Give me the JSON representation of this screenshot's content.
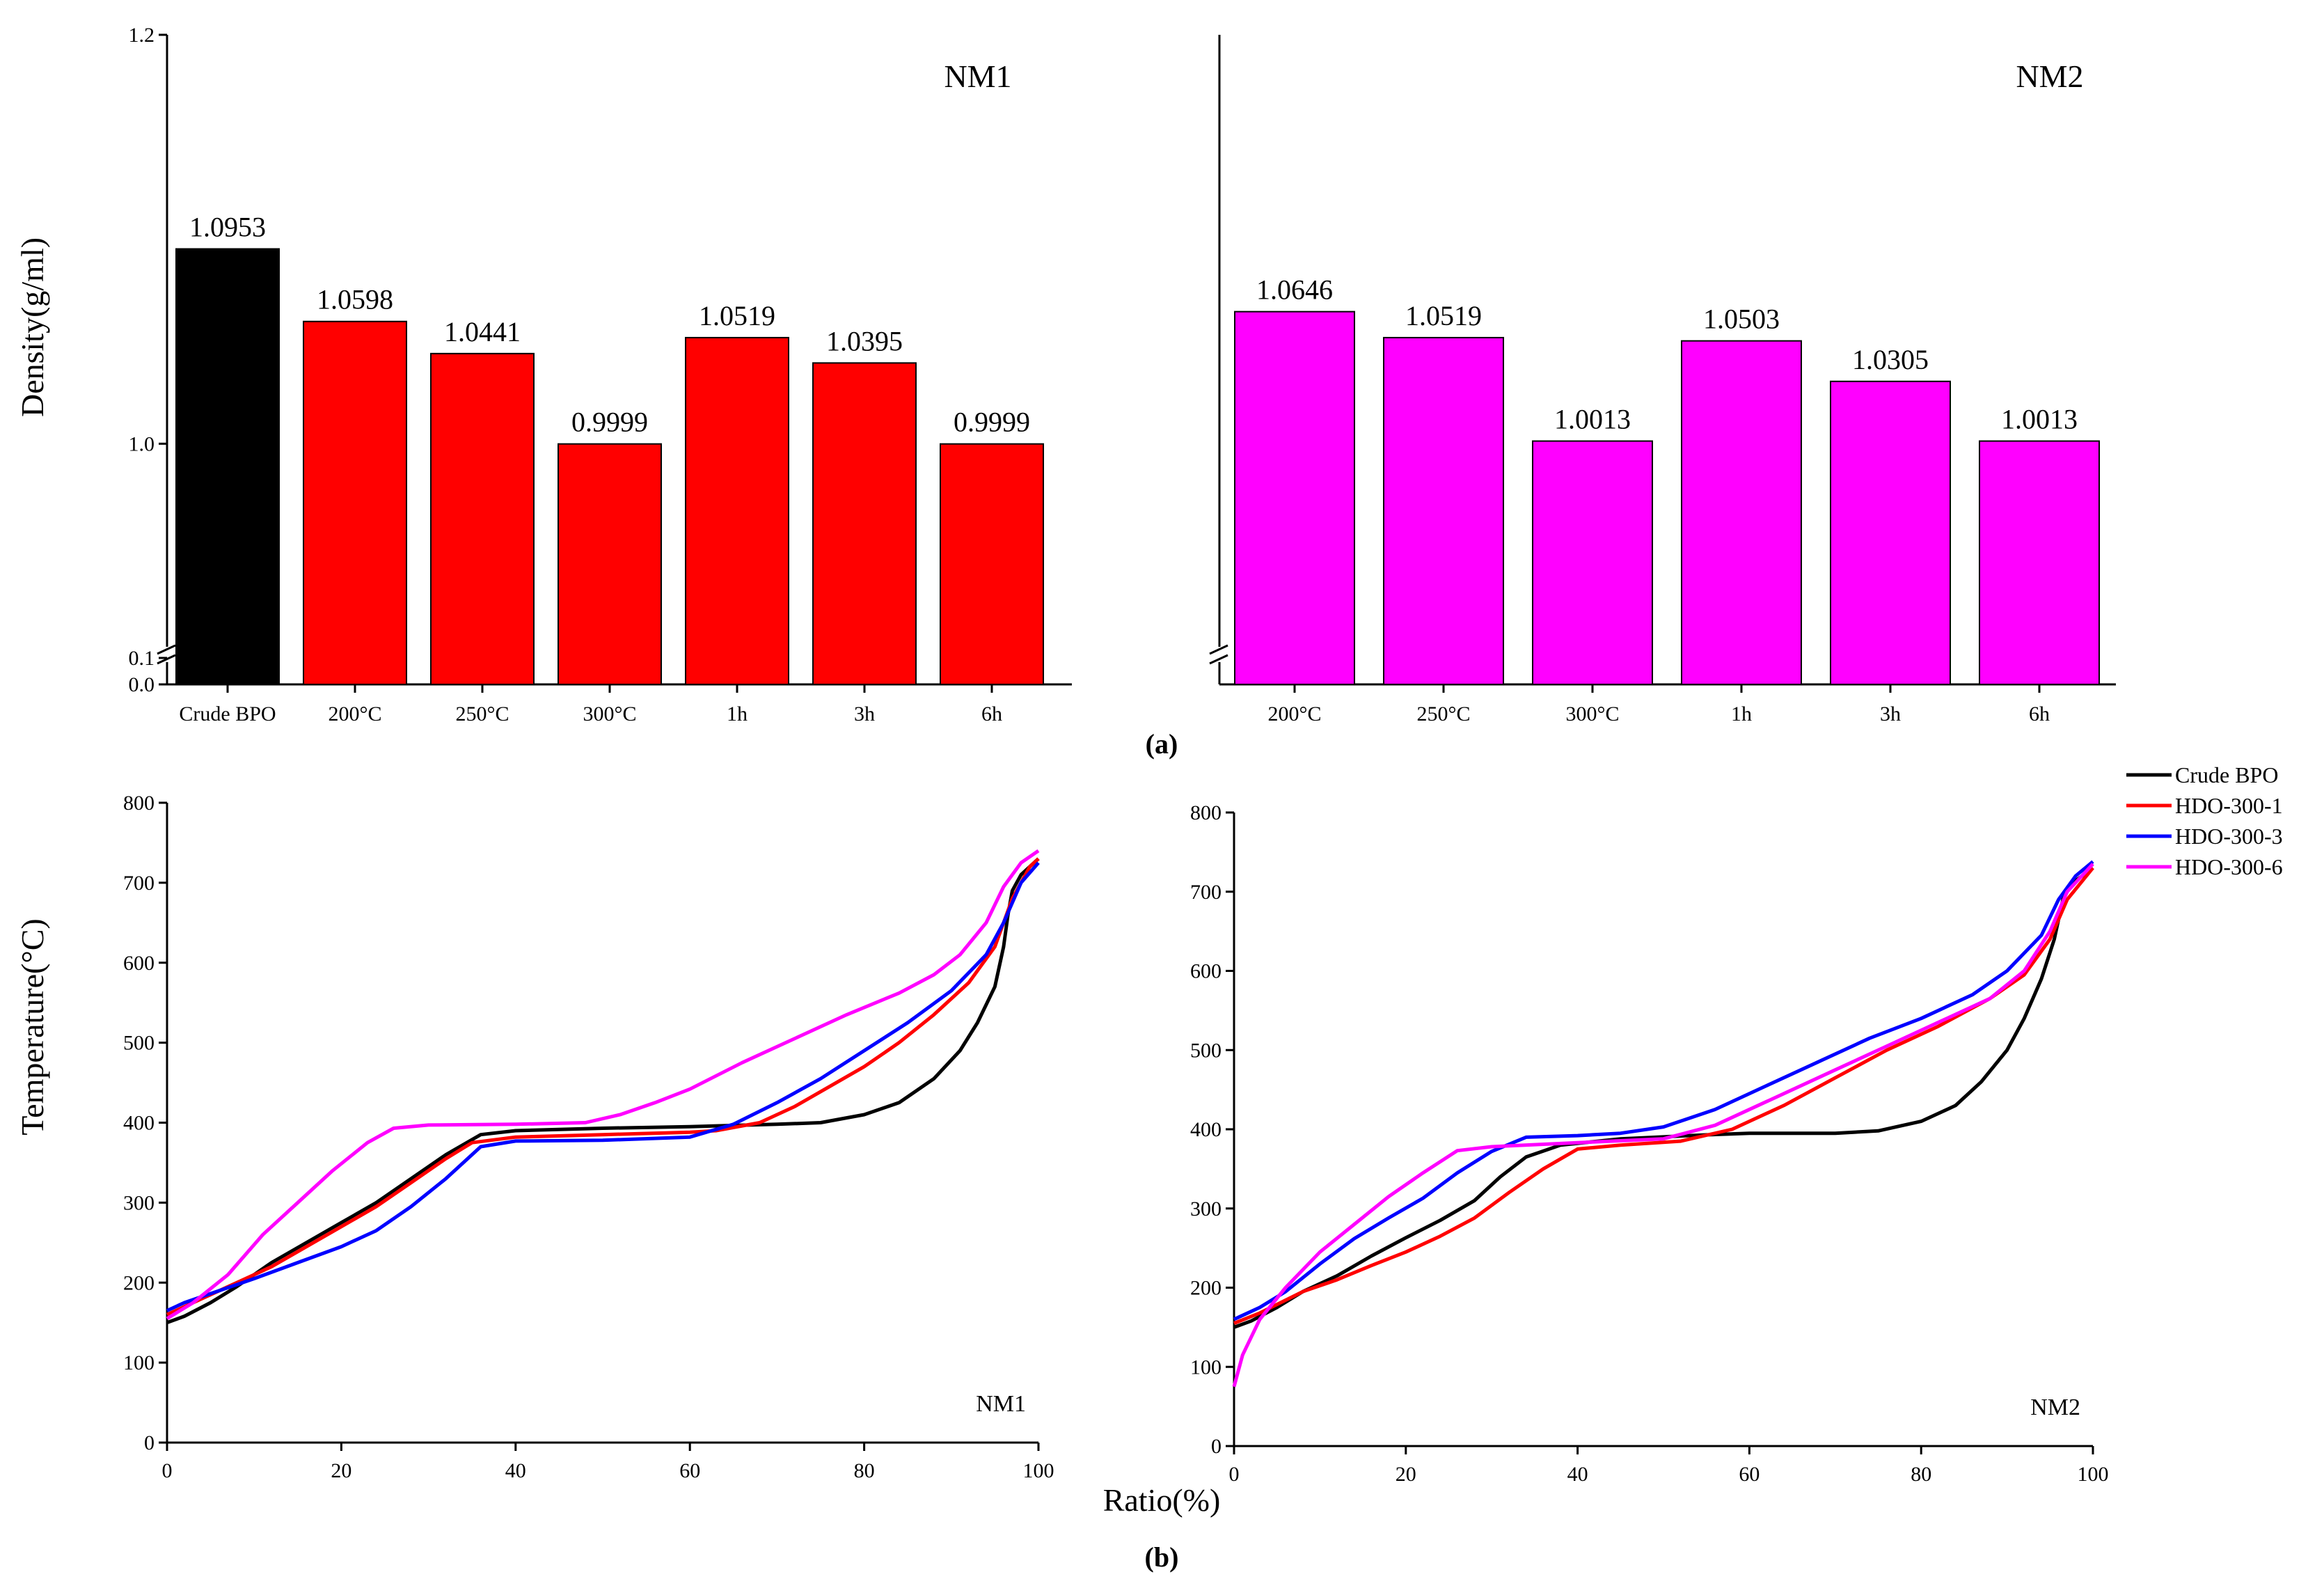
{
  "panels": {
    "a": "(a)",
    "b": "(b)"
  },
  "chart_data": [
    {
      "type": "bar",
      "title": "NM1",
      "ylabel": "Density(g/ml)",
      "ylim": [
        0.0,
        1.2
      ],
      "axis_break": [
        0.1,
        0.9
      ],
      "y_ticks": [
        "0.0",
        "0.1",
        "1.0",
        "1.2"
      ],
      "categories": [
        "Crude BPO",
        "200°C",
        "250°C",
        "300°C",
        "1h",
        "3h",
        "6h"
      ],
      "values": [
        1.0953,
        1.0598,
        1.0441,
        0.9999,
        1.0519,
        1.0395,
        0.9999
      ],
      "value_labels": [
        "1.0953",
        "1.0598",
        "1.0441",
        "0.9999",
        "1.0519",
        "1.0395",
        "0.9999"
      ],
      "colors": [
        "#000000",
        "#ff0000",
        "#ff0000",
        "#ff0000",
        "#ff0000",
        "#ff0000",
        "#ff0000"
      ]
    },
    {
      "type": "bar",
      "title": "NM2",
      "ylim": [
        0.0,
        1.2
      ],
      "axis_break": [
        0.1,
        0.9
      ],
      "categories": [
        "200°C",
        "250°C",
        "300°C",
        "1h",
        "3h",
        "6h"
      ],
      "values": [
        1.0646,
        1.0519,
        1.0013,
        1.0503,
        1.0305,
        1.0013
      ],
      "value_labels": [
        "1.0646",
        "1.0519",
        "1.0013",
        "1.0503",
        "1.0305",
        "1.0013"
      ],
      "colors": [
        "#ff00ff",
        "#ff00ff",
        "#ff00ff",
        "#ff00ff",
        "#ff00ff",
        "#ff00ff"
      ]
    },
    {
      "type": "line",
      "title": "NM1",
      "xlabel": "Ratio(%)",
      "ylabel": "Temperature(°C)",
      "xlim": [
        0,
        100
      ],
      "ylim": [
        0,
        800
      ],
      "x_ticks": [
        0,
        20,
        40,
        60,
        80,
        100
      ],
      "y_ticks": [
        0,
        100,
        200,
        300,
        400,
        500,
        600,
        700,
        800
      ],
      "series": [
        {
          "name": "Crude BPO",
          "color": "#000000",
          "points": [
            [
              0,
              150
            ],
            [
              2,
              158
            ],
            [
              5,
              175
            ],
            [
              8,
              195
            ],
            [
              12,
              225
            ],
            [
              16,
              250
            ],
            [
              20,
              275
            ],
            [
              24,
              300
            ],
            [
              28,
              330
            ],
            [
              32,
              360
            ],
            [
              36,
              385
            ],
            [
              40,
              390
            ],
            [
              50,
              393
            ],
            [
              60,
              395
            ],
            [
              70,
              398
            ],
            [
              75,
              400
            ],
            [
              80,
              410
            ],
            [
              84,
              425
            ],
            [
              88,
              455
            ],
            [
              91,
              490
            ],
            [
              93,
              525
            ],
            [
              95,
              570
            ],
            [
              96,
              620
            ],
            [
              96.5,
              660
            ],
            [
              97,
              690
            ],
            [
              98,
              710
            ],
            [
              100,
              730
            ]
          ]
        },
        {
          "name": "HDO-300-1",
          "color": "#ff0000",
          "points": [
            [
              0,
              160
            ],
            [
              3,
              175
            ],
            [
              8,
              200
            ],
            [
              12,
              220
            ],
            [
              16,
              245
            ],
            [
              20,
              270
            ],
            [
              24,
              295
            ],
            [
              28,
              325
            ],
            [
              32,
              355
            ],
            [
              35,
              375
            ],
            [
              40,
              382
            ],
            [
              50,
              385
            ],
            [
              60,
              388
            ],
            [
              63,
              390
            ],
            [
              68,
              400
            ],
            [
              72,
              420
            ],
            [
              76,
              445
            ],
            [
              80,
              470
            ],
            [
              84,
              500
            ],
            [
              88,
              535
            ],
            [
              92,
              575
            ],
            [
              95,
              620
            ],
            [
              97,
              680
            ],
            [
              99,
              720
            ],
            [
              100,
              730
            ]
          ]
        },
        {
          "name": "HDO-300-3",
          "color": "#0000ff",
          "points": [
            [
              0,
              165
            ],
            [
              2,
              175
            ],
            [
              6,
              190
            ],
            [
              10,
              205
            ],
            [
              15,
              225
            ],
            [
              20,
              245
            ],
            [
              24,
              265
            ],
            [
              28,
              295
            ],
            [
              32,
              330
            ],
            [
              36,
              370
            ],
            [
              40,
              377
            ],
            [
              50,
              378
            ],
            [
              60,
              382
            ],
            [
              65,
              398
            ],
            [
              70,
              425
            ],
            [
              75,
              455
            ],
            [
              80,
              490
            ],
            [
              85,
              525
            ],
            [
              90,
              565
            ],
            [
              94,
              610
            ],
            [
              96,
              650
            ],
            [
              98,
              700
            ],
            [
              100,
              725
            ]
          ]
        },
        {
          "name": "HDO-300-6",
          "color": "#ff00ff",
          "points": [
            [
              0,
              155
            ],
            [
              3,
              175
            ],
            [
              7,
              210
            ],
            [
              11,
              260
            ],
            [
              15,
              300
            ],
            [
              19,
              340
            ],
            [
              23,
              375
            ],
            [
              26,
              393
            ],
            [
              30,
              397
            ],
            [
              40,
              398
            ],
            [
              48,
              400
            ],
            [
              52,
              410
            ],
            [
              56,
              425
            ],
            [
              60,
              442
            ],
            [
              66,
              475
            ],
            [
              72,
              505
            ],
            [
              78,
              535
            ],
            [
              84,
              562
            ],
            [
              88,
              585
            ],
            [
              91,
              610
            ],
            [
              94,
              650
            ],
            [
              96,
              695
            ],
            [
              98,
              725
            ],
            [
              100,
              740
            ]
          ]
        }
      ],
      "corner_label": "NM1"
    },
    {
      "type": "line",
      "title": "NM2",
      "xlim": [
        0,
        100
      ],
      "ylim": [
        0,
        800
      ],
      "x_ticks": [
        0,
        20,
        40,
        60,
        80,
        100
      ],
      "y_ticks": [
        0,
        100,
        200,
        300,
        400,
        500,
        600,
        700,
        800
      ],
      "series": [
        {
          "name": "Crude BPO",
          "color": "#000000",
          "points": [
            [
              0,
              150
            ],
            [
              2,
              158
            ],
            [
              5,
              175
            ],
            [
              8,
              195
            ],
            [
              12,
              215
            ],
            [
              16,
              240
            ],
            [
              20,
              263
            ],
            [
              24,
              285
            ],
            [
              28,
              310
            ],
            [
              31,
              340
            ],
            [
              34,
              365
            ],
            [
              38,
              380
            ],
            [
              45,
              388
            ],
            [
              55,
              393
            ],
            [
              60,
              395
            ],
            [
              70,
              395
            ],
            [
              75,
              398
            ],
            [
              80,
              410
            ],
            [
              84,
              430
            ],
            [
              87,
              460
            ],
            [
              90,
              500
            ],
            [
              92,
              540
            ],
            [
              94,
              590
            ],
            [
              95.5,
              640
            ],
            [
              96.5,
              690
            ],
            [
              97.5,
              710
            ],
            [
              100,
              730
            ]
          ]
        },
        {
          "name": "HDO-300-1",
          "color": "#ff0000",
          "points": [
            [
              0,
              155
            ],
            [
              3,
              168
            ],
            [
              8,
              195
            ],
            [
              12,
              210
            ],
            [
              16,
              228
            ],
            [
              20,
              245
            ],
            [
              24,
              265
            ],
            [
              28,
              288
            ],
            [
              32,
              320
            ],
            [
              36,
              350
            ],
            [
              40,
              375
            ],
            [
              45,
              380
            ],
            [
              52,
              385
            ],
            [
              58,
              400
            ],
            [
              64,
              430
            ],
            [
              70,
              465
            ],
            [
              76,
              500
            ],
            [
              82,
              530
            ],
            [
              88,
              565
            ],
            [
              92,
              595
            ],
            [
              95,
              640
            ],
            [
              97,
              690
            ],
            [
              100,
              730
            ]
          ]
        },
        {
          "name": "HDO-300-3",
          "color": "#0000ff",
          "points": [
            [
              0,
              160
            ],
            [
              3,
              175
            ],
            [
              6,
              195
            ],
            [
              10,
              230
            ],
            [
              14,
              262
            ],
            [
              18,
              288
            ],
            [
              22,
              313
            ],
            [
              26,
              345
            ],
            [
              30,
              372
            ],
            [
              34,
              390
            ],
            [
              40,
              392
            ],
            [
              45,
              395
            ],
            [
              50,
              403
            ],
            [
              56,
              425
            ],
            [
              62,
              455
            ],
            [
              68,
              485
            ],
            [
              74,
              515
            ],
            [
              80,
              540
            ],
            [
              86,
              570
            ],
            [
              90,
              600
            ],
            [
              94,
              645
            ],
            [
              96,
              690
            ],
            [
              98,
              720
            ],
            [
              100,
              738
            ]
          ]
        },
        {
          "name": "HDO-300-6",
          "color": "#ff00ff",
          "points": [
            [
              0,
              75
            ],
            [
              1,
              115
            ],
            [
              3,
              160
            ],
            [
              6,
              200
            ],
            [
              10,
              245
            ],
            [
              14,
              280
            ],
            [
              18,
              315
            ],
            [
              22,
              345
            ],
            [
              26,
              373
            ],
            [
              30,
              378
            ],
            [
              40,
              383
            ],
            [
              50,
              388
            ],
            [
              56,
              405
            ],
            [
              62,
              435
            ],
            [
              70,
              475
            ],
            [
              76,
              505
            ],
            [
              82,
              535
            ],
            [
              88,
              565
            ],
            [
              92,
              600
            ],
            [
              95,
              650
            ],
            [
              97,
              700
            ],
            [
              100,
              735
            ]
          ]
        }
      ],
      "corner_label": "NM2"
    }
  ],
  "legend": [
    {
      "name": "Crude BPO",
      "color": "#000000"
    },
    {
      "name": "HDO-300-1",
      "color": "#ff0000"
    },
    {
      "name": "HDO-300-3",
      "color": "#0000ff"
    },
    {
      "name": "HDO-300-6",
      "color": "#ff00ff"
    }
  ]
}
